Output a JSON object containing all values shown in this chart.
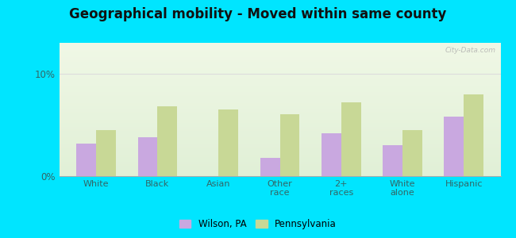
{
  "title": "Geographical mobility - Moved within same county",
  "categories": [
    "White",
    "Black",
    "Asian",
    "Other\nrace",
    "2+\nraces",
    "White\nalone",
    "Hispanic"
  ],
  "wilson_values": [
    3.2,
    3.8,
    0.0,
    1.8,
    4.2,
    3.0,
    5.8
  ],
  "pa_values": [
    4.5,
    6.8,
    6.5,
    6.0,
    7.2,
    4.5,
    8.0
  ],
  "wilson_color": "#c9a8e0",
  "pa_color": "#c8d896",
  "bar_width": 0.32,
  "ylim": [
    0,
    13
  ],
  "yticks": [
    0,
    10
  ],
  "ytick_labels": [
    "0%",
    "10%"
  ],
  "grid_color": "#cccccc",
  "outer_bg": "#00e5ff",
  "legend_wilson": "Wilson, PA",
  "legend_pa": "Pennsylvania",
  "title_fontsize": 12,
  "watermark": "City-Data.com"
}
